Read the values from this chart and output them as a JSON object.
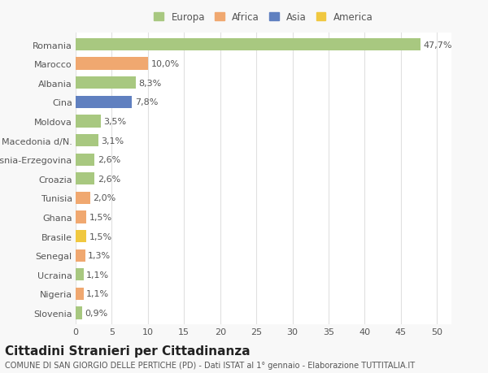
{
  "categories": [
    "Romania",
    "Marocco",
    "Albania",
    "Cina",
    "Moldova",
    "Macedonia d/N.",
    "Bosnia-Erzegovina",
    "Croazia",
    "Tunisia",
    "Ghana",
    "Brasile",
    "Senegal",
    "Ucraina",
    "Nigeria",
    "Slovenia"
  ],
  "values": [
    47.7,
    10.0,
    8.3,
    7.8,
    3.5,
    3.1,
    2.6,
    2.6,
    2.0,
    1.5,
    1.5,
    1.3,
    1.1,
    1.1,
    0.9
  ],
  "labels": [
    "47,7%",
    "10,0%",
    "8,3%",
    "7,8%",
    "3,5%",
    "3,1%",
    "2,6%",
    "2,6%",
    "2,0%",
    "1,5%",
    "1,5%",
    "1,3%",
    "1,1%",
    "1,1%",
    "0,9%"
  ],
  "colors": [
    "#a8c880",
    "#f0a870",
    "#a8c880",
    "#6080c0",
    "#a8c880",
    "#a8c880",
    "#a8c880",
    "#a8c880",
    "#f0a870",
    "#f0a870",
    "#f0c840",
    "#f0a870",
    "#a8c880",
    "#f0a870",
    "#a8c880"
  ],
  "legend_labels": [
    "Europa",
    "Africa",
    "Asia",
    "America"
  ],
  "legend_colors": [
    "#a8c880",
    "#f0a870",
    "#6080c0",
    "#f0c840"
  ],
  "title": "Cittadini Stranieri per Cittadinanza",
  "subtitle": "COMUNE DI SAN GIORGIO DELLE PERTICHE (PD) - Dati ISTAT al 1° gennaio - Elaborazione TUTTITALIA.IT",
  "xlim": [
    0,
    52
  ],
  "xticks": [
    0,
    5,
    10,
    15,
    20,
    25,
    30,
    35,
    40,
    45,
    50
  ],
  "bg_color": "#f8f8f8",
  "plot_bg_color": "#ffffff",
  "grid_color": "#e0e0e0",
  "label_fontsize": 8.0,
  "tick_fontsize": 8.0,
  "title_fontsize": 11,
  "subtitle_fontsize": 7.0,
  "bar_height": 0.65
}
